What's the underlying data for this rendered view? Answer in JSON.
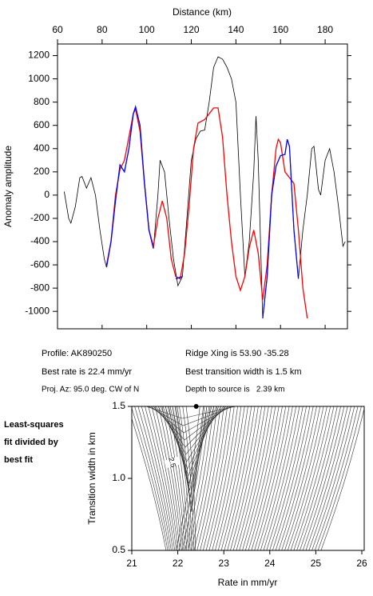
{
  "chart_data": [
    {
      "type": "line",
      "x_label": "Distance (km)",
      "y_label": "Anomaly amplitude",
      "xlim": [
        60,
        190
      ],
      "xticks": [
        60,
        80,
        100,
        120,
        140,
        160,
        180
      ],
      "ylim": [
        -1150,
        1300
      ],
      "yticks": [
        -1000,
        -800,
        -600,
        -400,
        -200,
        0,
        200,
        400,
        600,
        800,
        1000,
        1200
      ],
      "series": [
        {
          "color": "#000000",
          "x": [
            63,
            65,
            66,
            68,
            70,
            71,
            73,
            75,
            77,
            79,
            81,
            82,
            84,
            86,
            88,
            90,
            92,
            94,
            95,
            97,
            99,
            101,
            103,
            105,
            106,
            108,
            110,
            112,
            114,
            116,
            118,
            120,
            122,
            124,
            126,
            128,
            130,
            132,
            134,
            136,
            138,
            140,
            142,
            144,
            146,
            148,
            149,
            150,
            152,
            154,
            156,
            158,
            160,
            162,
            163,
            164,
            166,
            168,
            170,
            172,
            174,
            175,
            177,
            178,
            180,
            182,
            184,
            186,
            188,
            189
          ],
          "values": [
            30,
            -200,
            -240,
            -100,
            150,
            160,
            60,
            150,
            0,
            -300,
            -550,
            -620,
            -400,
            -50,
            260,
            200,
            400,
            700,
            760,
            600,
            100,
            -300,
            -460,
            0,
            300,
            200,
            -200,
            -550,
            -780,
            -700,
            -200,
            300,
            480,
            550,
            560,
            800,
            1100,
            1190,
            1170,
            1100,
            1000,
            800,
            0,
            -700,
            -400,
            200,
            680,
            300,
            -1060,
            -700,
            0,
            250,
            340,
            350,
            480,
            420,
            -300,
            -720,
            -300,
            0,
            400,
            420,
            50,
            0,
            300,
            400,
            200,
            -100,
            -440,
            -400
          ]
        },
        {
          "color": "#ff0000",
          "x": [
            82,
            84,
            86,
            88,
            90,
            92,
            94,
            95,
            97,
            99,
            101,
            103,
            105,
            107,
            109,
            111,
            113,
            115,
            117,
            119,
            121,
            123,
            126,
            128,
            130,
            132,
            134,
            136,
            138,
            140,
            142,
            144,
            146,
            148,
            150,
            152,
            154,
            156,
            158,
            159,
            160,
            162,
            164,
            166,
            168,
            170,
            172
          ],
          "values": [
            -600,
            -400,
            0,
            220,
            300,
            500,
            700,
            740,
            550,
            100,
            -300,
            -440,
            -200,
            -50,
            -200,
            -550,
            -700,
            -720,
            -500,
            -100,
            400,
            620,
            650,
            700,
            750,
            750,
            500,
            0,
            -400,
            -700,
            -820,
            -700,
            -450,
            -300,
            -500,
            -900,
            -600,
            0,
            400,
            480,
            450,
            200,
            150,
            100,
            -300,
            -800,
            -1060
          ]
        },
        {
          "color": "#0000ff",
          "x": [
            82,
            84,
            86,
            88,
            90,
            92,
            94,
            95,
            97,
            99,
            101,
            103,
            null,
            113,
            116,
            null,
            152,
            154,
            156,
            158,
            160,
            162,
            163,
            164,
            166,
            168
          ],
          "values": [
            -620,
            -400,
            -50,
            260,
            200,
            400,
            700,
            760,
            600,
            100,
            -300,
            -460,
            null,
            -720,
            -700,
            null,
            -1060,
            -700,
            0,
            250,
            340,
            350,
            480,
            420,
            -300,
            -720
          ]
        }
      ]
    },
    {
      "type": "contour",
      "x_label": "Rate in mm/yr",
      "y_label": "Transition width in km",
      "xlim": [
        21,
        26
      ],
      "xticks": [
        21,
        22,
        23,
        24,
        25,
        26
      ],
      "ylim": [
        0.5,
        1.5
      ],
      "yticks": [
        0.5,
        {
          "value": 1,
          "label": "1.0"
        },
        1.5
      ],
      "best_fit": {
        "x": 22.4,
        "y": 1.5
      },
      "contour_labels": [
        {
          "label": "2.5",
          "x": 21.87,
          "y": 1.11
        }
      ],
      "caption": [
        "Least-squares",
        "fit divided by",
        "best fit"
      ]
    }
  ],
  "profile_info": {
    "profile": "Profile: AK890250",
    "rate": "Best rate is 22.4 mm/yr",
    "azimuth": "Proj. Az: 95.0 deg. CW of N",
    "ridge": "Ridge Xing is 53.90 -35.28",
    "width": "Best transition width is 1.5 km",
    "depth": "Depth to source is   2.39 km"
  }
}
